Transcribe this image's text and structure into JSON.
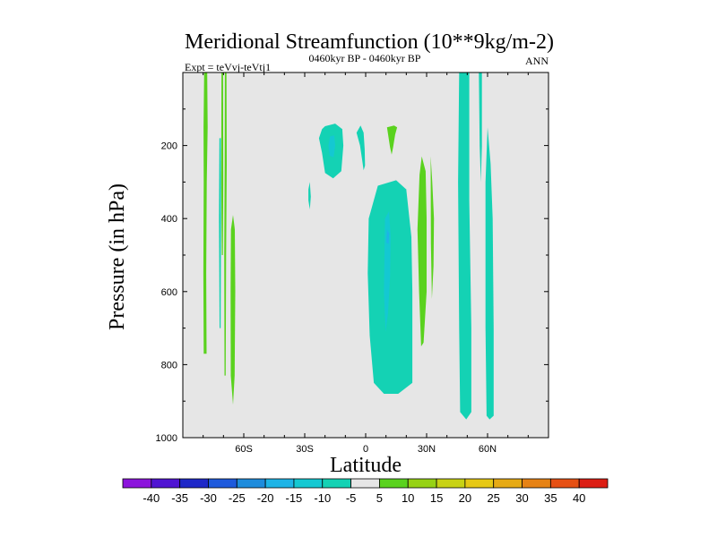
{
  "chart_data": {
    "type": "contour",
    "title": "Meridional Streamfunction (10**9kg/m-2)",
    "left_label": "Expt = teVvj-teVtj1",
    "center_label": "0460kyr BP - 0460kyr BP",
    "right_label": "ANN",
    "xlabel": "Latitude",
    "ylabel": "Pressure (in hPa)",
    "xlim": [
      -90,
      90
    ],
    "ylim": [
      1000,
      0
    ],
    "x_ticks": [
      {
        "value": -60,
        "label": "60S"
      },
      {
        "value": -30,
        "label": "30S"
      },
      {
        "value": 0,
        "label": "0"
      },
      {
        "value": 30,
        "label": "30N"
      },
      {
        "value": 60,
        "label": "60N"
      }
    ],
    "y_ticks": [
      {
        "value": 200,
        "label": "200"
      },
      {
        "value": 400,
        "label": "400"
      },
      {
        "value": 600,
        "label": "600"
      },
      {
        "value": 800,
        "label": "800"
      },
      {
        "value": 1000,
        "label": "1000"
      }
    ],
    "background_color": "#e6e6e6",
    "colorbar": {
      "levels": [
        -40,
        -35,
        -30,
        -25,
        -20,
        -15,
        -10,
        -5,
        5,
        10,
        15,
        20,
        25,
        30,
        35,
        40
      ],
      "colors": [
        "#8c14dc",
        "#5014d2",
        "#1e28c8",
        "#1e5adc",
        "#1e8cdc",
        "#1eb4e6",
        "#14c8d2",
        "#14d2b4",
        "#e6e6e6",
        "#5ad21e",
        "#96d214",
        "#c8d214",
        "#e6c814",
        "#e6aa14",
        "#e68214",
        "#e65014",
        "#dc1e14"
      ]
    },
    "regions": [
      {
        "label": "sh-narrow-band-1",
        "value": 7,
        "points": [
          [
            -79.5,
            0
          ],
          [
            -78,
            0
          ],
          [
            -77.8,
            150
          ],
          [
            -78.2,
            300
          ],
          [
            -78.5,
            550
          ],
          [
            -78.3,
            770
          ],
          [
            -79.7,
            770
          ],
          [
            -79.9,
            550
          ],
          [
            -79.7,
            300
          ],
          [
            -79.8,
            150
          ]
        ]
      },
      {
        "label": "sh-thin-band-2",
        "value": -7,
        "points": [
          [
            -72,
            180
          ],
          [
            -71.3,
            180
          ],
          [
            -71.2,
            400
          ],
          [
            -71.4,
            700
          ],
          [
            -71.9,
            700
          ],
          [
            -72.2,
            400
          ]
        ]
      },
      {
        "label": "sh-thin-band-3",
        "value": 7,
        "points": [
          [
            -71,
            0
          ],
          [
            -70.2,
            0
          ],
          [
            -70.1,
            300
          ],
          [
            -70.3,
            500
          ],
          [
            -70.8,
            500
          ],
          [
            -71.1,
            300
          ]
        ]
      },
      {
        "label": "sh-narrow-band-4",
        "value": 7,
        "points": [
          [
            -69.3,
            0
          ],
          [
            -68.5,
            0
          ],
          [
            -68.4,
            250
          ],
          [
            -68.7,
            500
          ],
          [
            -68.9,
            830
          ],
          [
            -69.5,
            830
          ],
          [
            -69.6,
            500
          ],
          [
            -69.4,
            250
          ]
        ]
      },
      {
        "label": "sh-narrow-band-5",
        "value": 7,
        "points": [
          [
            -65.3,
            390
          ],
          [
            -64.4,
            430
          ],
          [
            -64.2,
            600
          ],
          [
            -64.5,
            830
          ],
          [
            -65.3,
            910
          ],
          [
            -66.4,
            830
          ],
          [
            -66.5,
            600
          ],
          [
            -66.3,
            430
          ]
        ]
      },
      {
        "label": "upper-neg-cell",
        "value": -7,
        "points": [
          [
            -20,
            147
          ],
          [
            -15,
            140
          ],
          [
            -11.5,
            155
          ],
          [
            -11,
            200
          ],
          [
            -12,
            270
          ],
          [
            -16,
            290
          ],
          [
            -20,
            275
          ],
          [
            -21.5,
            220
          ],
          [
            -23,
            180
          ],
          [
            -21.5,
            155
          ]
        ]
      },
      {
        "label": "upper-neg-core",
        "value": -12,
        "points": [
          [
            -17.5,
            175
          ],
          [
            -15.5,
            172
          ],
          [
            -15,
            200
          ],
          [
            -15.8,
            232
          ],
          [
            -17.7,
            228
          ],
          [
            -18.3,
            200
          ]
        ]
      },
      {
        "label": "upper-neg-small",
        "value": -7,
        "points": [
          [
            -2.5,
            145
          ],
          [
            -1,
            165
          ],
          [
            -0.5,
            210
          ],
          [
            -0.3,
            255
          ],
          [
            -1,
            268
          ],
          [
            -1.7,
            240
          ],
          [
            -2.8,
            200
          ],
          [
            -4.5,
            165
          ]
        ]
      },
      {
        "label": "upper-pos-small",
        "value": 7,
        "points": [
          [
            10.5,
            150
          ],
          [
            14,
            145
          ],
          [
            15.5,
            150
          ],
          [
            14.5,
            170
          ],
          [
            13.5,
            205
          ],
          [
            12.8,
            225
          ],
          [
            12,
            205
          ],
          [
            11,
            168
          ]
        ]
      },
      {
        "label": "mid-neg-dot",
        "value": -7,
        "points": [
          [
            -27.5,
            300
          ],
          [
            -27,
            340
          ],
          [
            -27.5,
            375
          ],
          [
            -28.2,
            350
          ],
          [
            -28.2,
            320
          ]
        ]
      },
      {
        "label": "tropical-neg-cell",
        "value": -7,
        "points": [
          [
            6,
            310
          ],
          [
            15,
            295
          ],
          [
            20,
            320
          ],
          [
            22.5,
            450
          ],
          [
            23,
            600
          ],
          [
            23,
            850
          ],
          [
            16,
            880
          ],
          [
            9,
            880
          ],
          [
            4,
            850
          ],
          [
            2,
            720
          ],
          [
            1,
            550
          ],
          [
            1.5,
            400
          ]
        ]
      },
      {
        "label": "tropical-neg-core",
        "value": -12,
        "points": [
          [
            9.5,
            400
          ],
          [
            11.5,
            380
          ],
          [
            12.3,
            450
          ],
          [
            12,
            560
          ],
          [
            11,
            660
          ],
          [
            9.8,
            710
          ],
          [
            9,
            600
          ],
          [
            9.3,
            480
          ]
        ]
      },
      {
        "label": "tropical-neg-eye",
        "value": -17,
        "points": [
          [
            10.5,
            430
          ],
          [
            11.5,
            440
          ],
          [
            11.3,
            470
          ],
          [
            10.2,
            465
          ]
        ]
      },
      {
        "label": "tropical-pos-band",
        "value": 7,
        "points": [
          [
            26.5,
            280
          ],
          [
            27.6,
            230
          ],
          [
            29.5,
            270
          ],
          [
            30,
            400
          ],
          [
            30,
            600
          ],
          [
            28.5,
            740
          ],
          [
            27.3,
            750
          ],
          [
            26.3,
            600
          ],
          [
            25.5,
            430
          ]
        ]
      },
      {
        "label": "tropical-pos-thin",
        "value": 7,
        "points": [
          [
            32,
            230
          ],
          [
            32.8,
            300
          ],
          [
            33.6,
            400
          ],
          [
            33.4,
            530
          ],
          [
            32.6,
            620
          ],
          [
            32.1,
            470
          ]
        ]
      },
      {
        "label": "nh-neg-band",
        "value": -7,
        "points": [
          [
            46,
            0
          ],
          [
            51,
            0
          ],
          [
            51,
            350
          ],
          [
            52,
            700
          ],
          [
            52,
            930
          ],
          [
            49.5,
            950
          ],
          [
            46.5,
            930
          ],
          [
            46,
            700
          ],
          [
            45.5,
            300
          ]
        ]
      },
      {
        "label": "nh-neg-band-2",
        "value": -7,
        "points": [
          [
            60,
            150
          ],
          [
            61.5,
            250
          ],
          [
            62.5,
            400
          ],
          [
            63,
            700
          ],
          [
            63,
            940
          ],
          [
            61,
            950
          ],
          [
            59.5,
            940
          ],
          [
            59,
            700
          ],
          [
            59,
            300
          ]
        ]
      },
      {
        "label": "nh-neg-sliver",
        "value": -7,
        "points": [
          [
            55.7,
            0
          ],
          [
            57.2,
            0
          ],
          [
            57.2,
            200
          ],
          [
            56.7,
            300
          ],
          [
            56.1,
            200
          ]
        ]
      }
    ]
  }
}
